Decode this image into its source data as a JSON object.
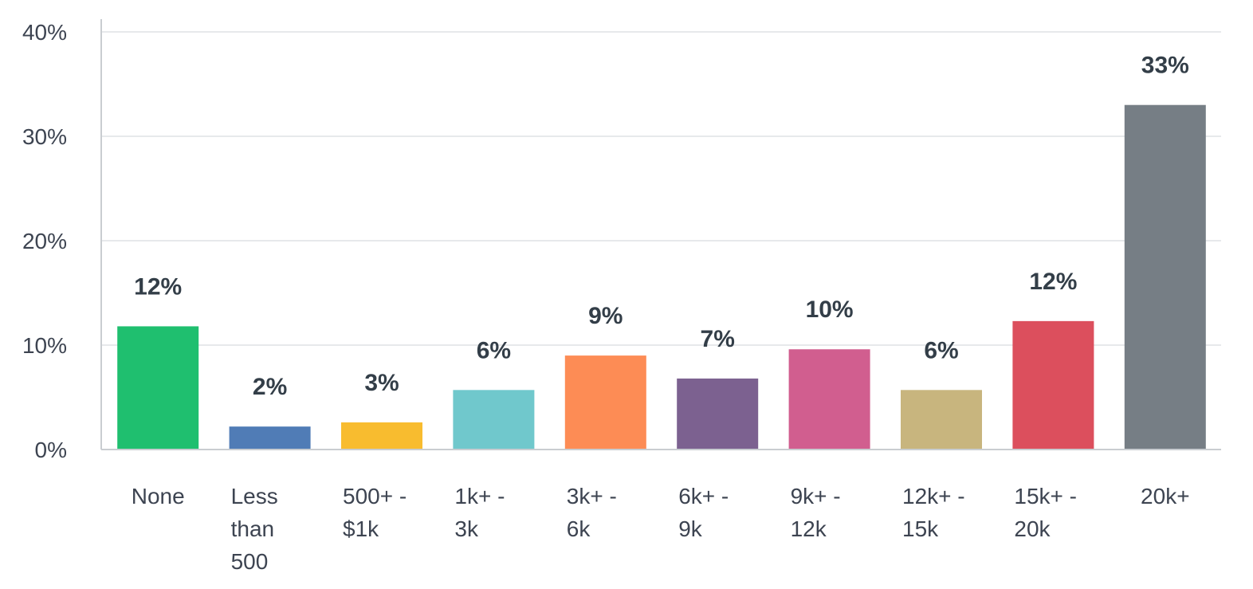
{
  "chart_data": {
    "type": "bar",
    "categories": [
      [
        "None"
      ],
      [
        "Less",
        "than",
        "500"
      ],
      [
        "500+ -",
        "$1k"
      ],
      [
        "1k+ -",
        "3k"
      ],
      [
        "3k+ -",
        "6k"
      ],
      [
        "6k+ -",
        "9k"
      ],
      [
        "9k+ -",
        "12k"
      ],
      [
        "12k+ -",
        "15k"
      ],
      [
        "15k+ -",
        "20k"
      ],
      [
        "20k+"
      ]
    ],
    "values": [
      11.8,
      2.2,
      2.6,
      5.7,
      9.0,
      6.8,
      9.6,
      5.7,
      12.3,
      33.0
    ],
    "data_labels": [
      "12%",
      "2%",
      "3%",
      "6%",
      "9%",
      "7%",
      "10%",
      "6%",
      "12%",
      "33%"
    ],
    "colors": [
      "#1fbf6f",
      "#507cb6",
      "#f8bc2f",
      "#70c8cc",
      "#fd8c55",
      "#7c6190",
      "#d15e8f",
      "#c8b57e",
      "#dc4f5d",
      "#767e85"
    ],
    "ylim": [
      0,
      40
    ],
    "yticks": [
      0,
      10,
      20,
      30,
      40
    ],
    "ytick_labels": [
      "0%",
      "10%",
      "20%",
      "30%",
      "40%"
    ],
    "grid": true,
    "title": "",
    "xlabel": "",
    "ylabel": ""
  }
}
